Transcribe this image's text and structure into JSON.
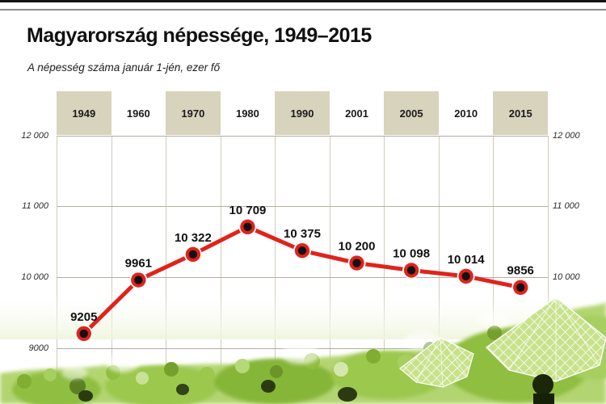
{
  "chart_data": {
    "type": "line",
    "title": "Magyarország népessége, 1949–2015",
    "subtitle": "A népesség száma január 1-jén, ezer fő",
    "categories": [
      "1949",
      "1960",
      "1970",
      "1980",
      "1990",
      "2001",
      "2005",
      "2010",
      "2015"
    ],
    "values": [
      9205,
      9961,
      10322,
      10709,
      10375,
      10200,
      10098,
      10014,
      9856
    ],
    "value_labels": [
      "9205",
      "9961",
      "10 322",
      "10 709",
      "10 375",
      "10 200",
      "10 098",
      "10 014",
      "9856"
    ],
    "ylim": [
      9000,
      12000
    ],
    "yticks": [
      12000,
      11000,
      10000,
      9000
    ],
    "ytick_labels_left": [
      "12 000",
      "11 000",
      "10 000",
      "9000"
    ],
    "yticks_right": [
      12000,
      11000,
      10000
    ],
    "ytick_labels_right": [
      "12 000",
      "11 000",
      "10 000"
    ],
    "grid": true,
    "legend": "none",
    "line_color": "#e0231b",
    "marker_center_color": "#121212",
    "marker_ring_color": "#e0231b",
    "band_color": "#d8d3bd"
  },
  "decor": {
    "top_bar_color": "#141414",
    "background_image_name": "green-tinted-crowd-with-checkered-umbrellas"
  }
}
